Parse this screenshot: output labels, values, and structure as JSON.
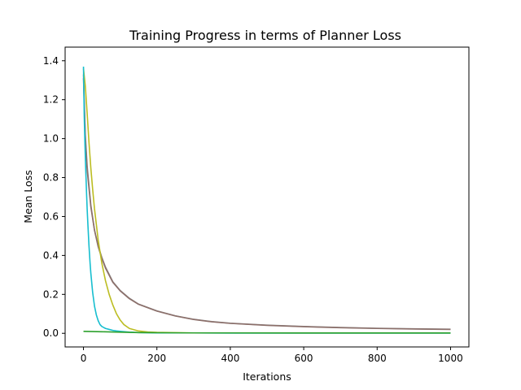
{
  "chart_data": {
    "type": "line",
    "title": "Training Progress in terms of Planner Loss",
    "xlabel": "Iterations",
    "ylabel": "Mean Loss",
    "xlim": [
      -50,
      1050
    ],
    "ylim": [
      -0.07,
      1.47
    ],
    "xticks": [
      0,
      200,
      400,
      600,
      800,
      1000
    ],
    "yticks": [
      0.0,
      0.2,
      0.4,
      0.6,
      0.8,
      1.0,
      1.2,
      1.4
    ],
    "xtick_labels": [
      "0",
      "200",
      "400",
      "600",
      "800",
      "1000"
    ],
    "ytick_labels": [
      "0.0",
      "0.2",
      "0.4",
      "0.6",
      "0.8",
      "1.0",
      "1.2",
      "1.4"
    ],
    "grid": false,
    "legend": "none",
    "series": [
      {
        "color": "#8c8c8c",
        "x": [
          0,
          5,
          10,
          20,
          30,
          40,
          50,
          60,
          80,
          100,
          125,
          150,
          200,
          250,
          300,
          350,
          400,
          500,
          600,
          700,
          800,
          900,
          1000
        ],
        "y": [
          1.33,
          1.02,
          0.86,
          0.66,
          0.53,
          0.45,
          0.39,
          0.34,
          0.265,
          0.22,
          0.18,
          0.15,
          0.115,
          0.09,
          0.072,
          0.06,
          0.052,
          0.042,
          0.035,
          0.03,
          0.026,
          0.023,
          0.021
        ]
      },
      {
        "color": "#8c6f6a",
        "x": [
          0,
          5,
          10,
          20,
          30,
          40,
          50,
          60,
          80,
          100,
          125,
          150,
          200,
          250,
          300,
          350,
          400,
          500,
          600,
          700,
          800,
          900,
          1000
        ],
        "y": [
          1.31,
          1.0,
          0.84,
          0.65,
          0.53,
          0.445,
          0.385,
          0.335,
          0.262,
          0.218,
          0.178,
          0.149,
          0.114,
          0.089,
          0.071,
          0.059,
          0.051,
          0.041,
          0.034,
          0.029,
          0.025,
          0.022,
          0.02
        ]
      },
      {
        "color": "#bcbd22",
        "x": [
          0,
          5,
          10,
          15,
          20,
          25,
          30,
          40,
          50,
          60,
          70,
          80,
          90,
          100,
          110,
          125,
          150,
          175,
          200,
          300,
          400,
          600,
          800,
          1000
        ],
        "y": [
          1.36,
          1.27,
          1.13,
          0.98,
          0.85,
          0.74,
          0.64,
          0.48,
          0.36,
          0.27,
          0.2,
          0.145,
          0.1,
          0.068,
          0.045,
          0.025,
          0.012,
          0.007,
          0.005,
          0.002,
          0.002,
          0.001,
          0.001,
          0.001
        ]
      },
      {
        "color": "#17becf",
        "x": [
          0,
          2,
          4,
          6,
          8,
          10,
          12,
          15,
          18,
          20,
          25,
          30,
          35,
          40,
          45,
          50,
          60,
          70,
          80,
          90,
          100,
          125,
          150,
          200,
          300,
          400,
          500,
          600,
          700,
          800,
          900,
          1000
        ],
        "y": [
          1.37,
          1.12,
          0.97,
          0.85,
          0.74,
          0.64,
          0.56,
          0.45,
          0.36,
          0.31,
          0.21,
          0.14,
          0.095,
          0.065,
          0.045,
          0.035,
          0.025,
          0.02,
          0.015,
          0.012,
          0.01,
          0.006,
          0.004,
          0.002,
          0.002,
          0.001,
          0.001,
          0.001,
          0.001,
          0.001,
          0.001,
          0.001
        ]
      },
      {
        "color": "#2ca02c",
        "x": [
          0,
          50,
          100,
          150,
          200,
          300,
          400,
          500,
          600,
          700,
          800,
          900,
          1000
        ],
        "y": [
          0.01,
          0.008,
          0.006,
          0.004,
          0.003,
          0.002,
          0.002,
          0.002,
          0.002,
          0.002,
          0.002,
          0.002,
          0.002
        ]
      }
    ]
  }
}
